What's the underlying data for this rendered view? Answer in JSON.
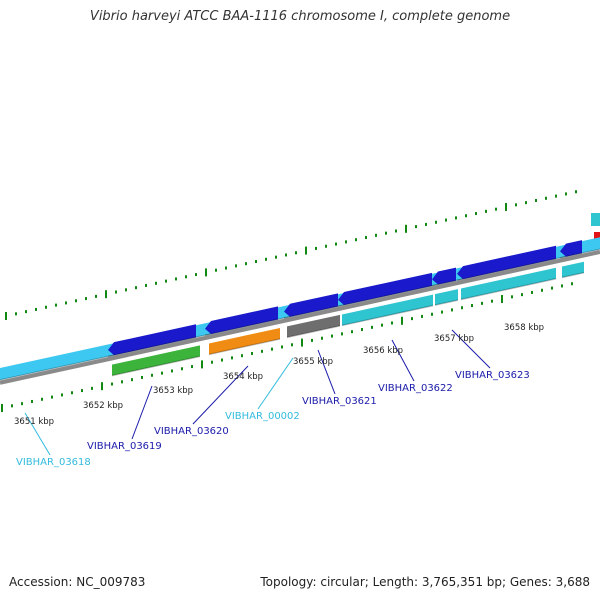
{
  "title": "Vibrio harveyi ATCC BAA-1116 chromosome I, complete genome",
  "footer": {
    "accession": "Accession: NC_009783",
    "summary": "Topology: circular; Length: 3,765,351 bp; Genes: 3,688"
  },
  "colors": {
    "backbone": "#8a8a8a",
    "gene_light_blue": "#3cc8f0",
    "gene_dark_blue": "#1a1acc",
    "gene_teal": "#2ec4d0",
    "gene_green": "#3cb43c",
    "gene_orange": "#f08c14",
    "gene_gray": "#6e6e6e",
    "gene_red": "#e01414",
    "tick": "#118811",
    "label_dark_blue": "#1a1aaa",
    "label_light_blue": "#33bbdd"
  },
  "scale_labels": [
    "3651 kbp",
    "3652 kbp",
    "3653 kbp",
    "3654 kbp",
    "3655 kbp",
    "3656 kbp",
    "3657 kbp",
    "3658 kbp"
  ],
  "gene_labels": [
    {
      "text": "VIBHAR_03618",
      "color": "label_light_blue"
    },
    {
      "text": "VIBHAR_03619",
      "color": "label_dark_blue"
    },
    {
      "text": "VIBHAR_03620",
      "color": "label_dark_blue"
    },
    {
      "text": "VIBHAR_00002",
      "color": "label_light_blue"
    },
    {
      "text": "VIBHAR_03621",
      "color": "label_dark_blue"
    },
    {
      "text": "VIBHAR_03622",
      "color": "label_dark_blue"
    },
    {
      "text": "VIBHAR_03623",
      "color": "label_dark_blue"
    }
  ]
}
